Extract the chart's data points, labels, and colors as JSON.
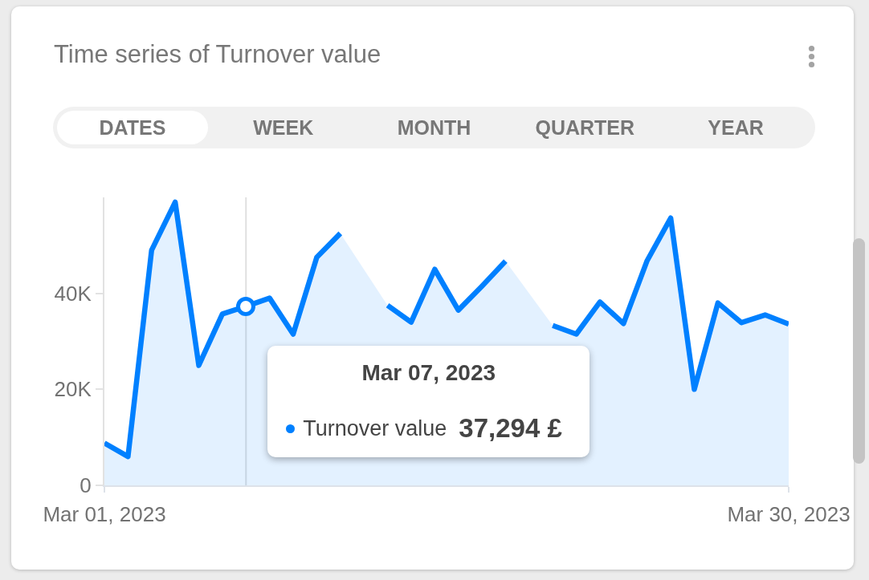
{
  "chart_data": {
    "type": "area",
    "title": "Time series of Turnover value",
    "x": [
      "2023-03-01",
      "2023-03-02",
      "2023-03-03",
      "2023-03-04",
      "2023-03-05",
      "2023-03-06",
      "2023-03-07",
      "2023-03-08",
      "2023-03-09",
      "2023-03-10",
      "2023-03-11",
      "2023-03-12",
      "2023-03-13",
      "2023-03-14",
      "2023-03-15",
      "2023-03-16",
      "2023-03-17",
      "2023-03-18",
      "2023-03-19",
      "2023-03-20",
      "2023-03-21",
      "2023-03-22",
      "2023-03-23",
      "2023-03-24",
      "2023-03-25",
      "2023-03-26",
      "2023-03-27",
      "2023-03-28",
      "2023-03-29",
      "2023-03-30"
    ],
    "series": [
      {
        "name": "Turnover value",
        "color": "#0080ff",
        "values": [
          8800,
          6000,
          49000,
          59000,
          25000,
          35700,
          37294,
          39000,
          31500,
          47500,
          52500,
          null,
          37500,
          34000,
          45000,
          36500,
          41500,
          46700,
          null,
          33300,
          31500,
          38200,
          33700,
          46800,
          55700,
          20000,
          38000,
          33900,
          35500,
          33600
        ]
      }
    ],
    "xlim": [
      "2023-03-01",
      "2023-03-30"
    ],
    "xticks": [
      {
        "value": "2023-03-01",
        "label": "Mar 01, 2023"
      },
      {
        "value": "2023-03-30",
        "label": "Mar 30, 2023"
      }
    ],
    "ylim": [
      0,
      60000
    ],
    "yticks": [
      0,
      {
        "value": 20000,
        "label": "20K"
      },
      {
        "value": 40000,
        "label": "40K"
      }
    ],
    "ref_lines": [
      {
        "axis": "x",
        "value": "2023-03-07",
        "color": "#e0e0e0"
      }
    ],
    "annotations": [
      "DATES",
      "WEEK",
      "MONTH",
      "QUARTER",
      "YEAR",
      "Mar 07, 2023",
      "37,294 £"
    ]
  }
}
